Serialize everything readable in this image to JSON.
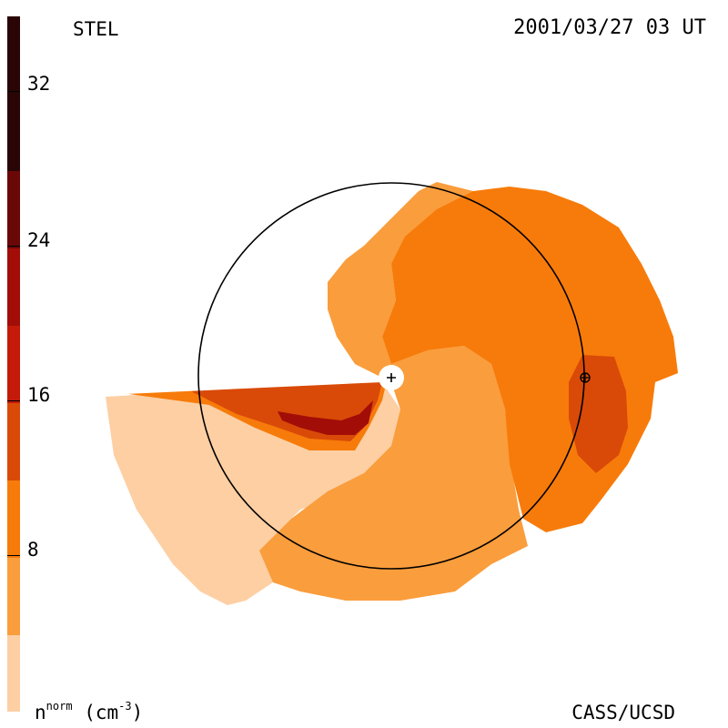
{
  "header": {
    "observatory": "STEL",
    "timestamp": "2001/03/27 03 UT"
  },
  "footer": {
    "credit": "CASS/UCSD"
  },
  "colorbar": {
    "quantity": "n",
    "quantity_superscript": "norm",
    "unit_open": "(cm",
    "unit_superscript": "-3",
    "unit_close": ")",
    "ticks": [
      "32",
      "24",
      "16",
      "8"
    ],
    "levels": [
      "#2a0505",
      "#6a0808",
      "#a20d08",
      "#d94a08",
      "#f77b0a",
      "#fa9d3c",
      "#fdcfa3"
    ]
  },
  "map": {
    "sun_marker": "+",
    "earth_marker": "⊕",
    "colors": {
      "low": "#fdcfa3",
      "mid": "#fa9d3c",
      "orange": "#f77b0a",
      "high": "#d94a08",
      "peak": "#a20d08",
      "orbit": "#000000"
    }
  }
}
